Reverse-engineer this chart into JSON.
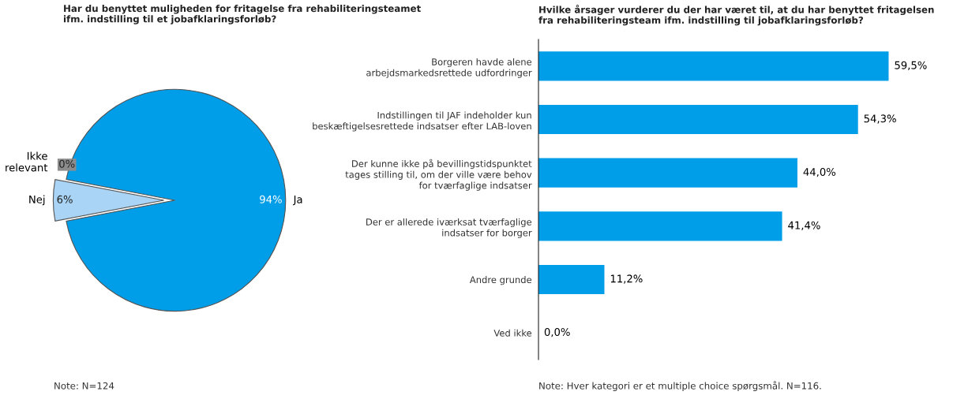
{
  "chart_data": [
    {
      "type": "pie",
      "title": "Har du benyttet muligheden for fritagelse fra rehabiliteringsteamet\nifm. indstilling til et jobafklaringsforløb?",
      "categories": [
        "Ja",
        "Nej",
        "Ikke\nrelevant"
      ],
      "values": [
        94,
        6,
        0
      ],
      "colors": [
        "#009ee9",
        "#a9d4f5",
        "#8c8c8c"
      ],
      "value_labels": [
        "94%",
        "6%",
        "0%"
      ],
      "annotations": [
        "Note: N=124"
      ]
    },
    {
      "type": "bar",
      "orientation": "horizontal",
      "title": "Hvilke årsager vurderer du der har været til, at du har benyttet fritagelsen\nfra rehabiliteringsteam ifm. indstilling til jobafklaringsforløb?",
      "categories": [
        "Borgeren havde alene\narbejdsmarkedsrettede udfordringer",
        "Indstillingen til JAF indeholder kun\nbeskæftigelsesrettede indsatser efter LAB-loven",
        "Der kunne ikke på bevillingstidspunktet\ntages stilling til, om der ville være behov\nfor tværfaglige indsatser",
        "Der er allerede iværksat tværfaglige\nindsatser for borger",
        "Andre grunde",
        "Ved ikke"
      ],
      "values": [
        59.5,
        54.3,
        44.0,
        41.4,
        11.2,
        0.0
      ],
      "color": "#009ee9",
      "value_labels": [
        "59,5%",
        "54,3%",
        "44,0%",
        "41,4%",
        "11,2%",
        "0,0%"
      ],
      "annotations": [
        "Note: Hver kategori er et multiple choice spørgsmål. N=116."
      ]
    }
  ]
}
